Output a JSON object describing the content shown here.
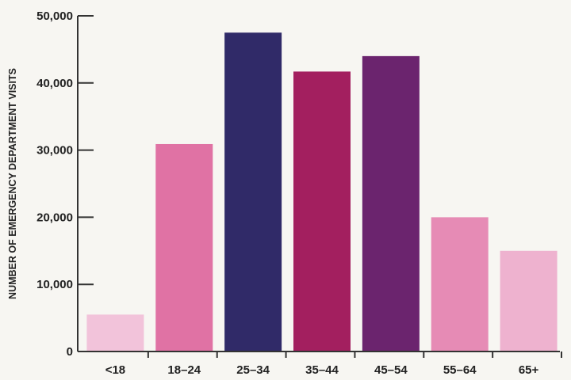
{
  "chart_data": {
    "type": "bar",
    "title": "",
    "xlabel": "",
    "ylabel": "NUMBER OF EMERGENCY DEPARTMENT VISITS",
    "ylim": [
      0,
      50000
    ],
    "yticks": [
      0,
      10000,
      20000,
      30000,
      40000,
      50000
    ],
    "ytick_labels": [
      "0",
      "10,000",
      "20,000",
      "30,000",
      "40,000",
      "50,000"
    ],
    "categories": [
      "<18",
      "18–24",
      "25–34",
      "35–44",
      "45–54",
      "55–64",
      "65+"
    ],
    "values": [
      5500,
      30900,
      47500,
      41700,
      44000,
      20000,
      15000
    ],
    "colors": [
      "#f2c3da",
      "#e072a4",
      "#302a68",
      "#a31f5f",
      "#6b246e",
      "#e68bb5",
      "#eeb2cf"
    ],
    "grid": false,
    "legend": "none"
  }
}
